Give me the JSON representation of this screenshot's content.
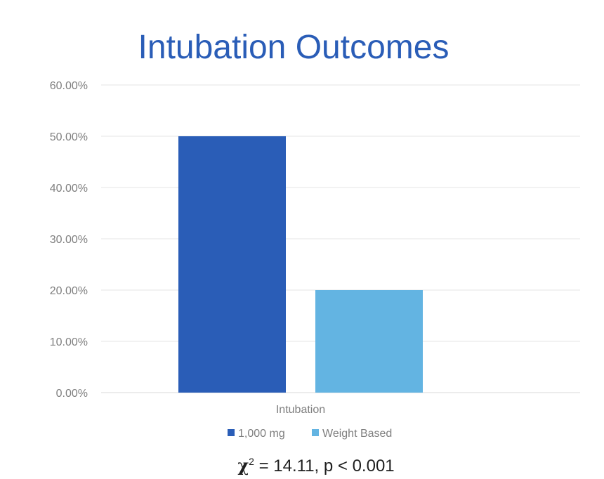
{
  "chart_data": {
    "type": "bar",
    "title": "Intubation Outcomes",
    "categories": [
      "Intubation"
    ],
    "series": [
      {
        "name": "1,000 mg",
        "values": [
          50.0
        ],
        "color": "#2a5db7"
      },
      {
        "name": "Weight Based",
        "values": [
          20.0
        ],
        "color": "#63b4e2"
      }
    ],
    "yticks": [
      "0.00%",
      "10.00%",
      "20.00%",
      "30.00%",
      "40.00%",
      "50.00%",
      "60.00%"
    ],
    "ylim": [
      0,
      60
    ],
    "xlabel": "",
    "ylabel": "",
    "grid": true,
    "legend": "bottom"
  },
  "stat": {
    "symbol": "χ",
    "superscript": "2",
    "text": " = 14.11, p < 0.001"
  }
}
